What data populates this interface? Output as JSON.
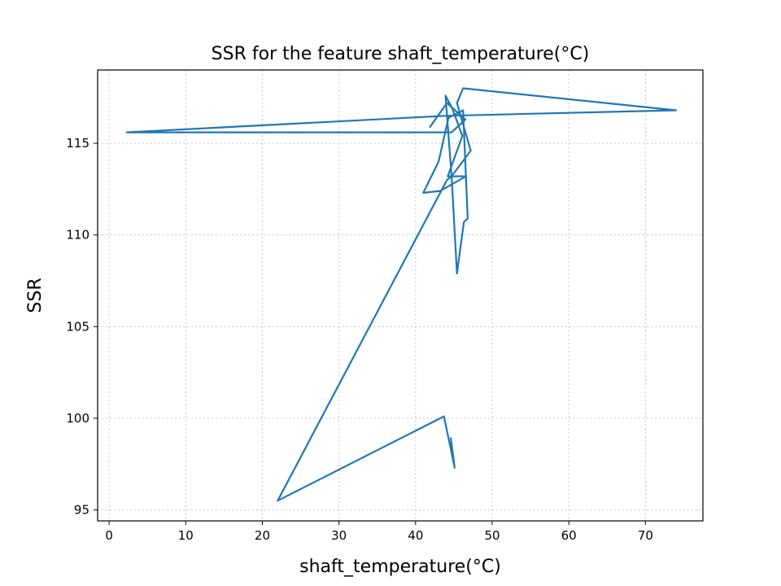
{
  "chart_data": {
    "type": "line",
    "title": "SSR for the feature shaft_temperature(°C)",
    "xlabel": "shaft_temperature(°C)",
    "ylabel": "SSR",
    "xlim": [
      -1.5,
      77.5
    ],
    "ylim": [
      94.4,
      119.0
    ],
    "xticks": [
      0,
      10,
      20,
      30,
      40,
      50,
      60,
      70
    ],
    "yticks": [
      95,
      100,
      105,
      110,
      115
    ],
    "grid": true,
    "grid_style": "dotted",
    "legend": "none",
    "series": [
      {
        "color": "#1f77b4",
        "x": [
          41.9,
          44.1,
          46.5,
          44.7,
          2.3,
          43.9,
          74.0,
          46.2,
          45.4,
          47.2,
          44.7,
          43.9,
          44.8,
          46.1,
          44.2,
          46.6,
          43.2,
          41.0,
          43.0,
          44.3,
          46.2,
          46.8,
          46.3,
          45.4,
          44.7,
          44.1,
          22.0,
          43.7,
          45.1,
          44.6
        ],
        "y": [
          115.9,
          117.2,
          116.3,
          115.6,
          115.6,
          116.5,
          116.8,
          118.0,
          117.2,
          114.6,
          113.2,
          117.6,
          116.9,
          115.4,
          113.2,
          113.2,
          112.4,
          112.3,
          114.0,
          116.4,
          116.8,
          110.9,
          110.7,
          107.9,
          113.2,
          113.0,
          95.5,
          100.1,
          97.3,
          98.9
        ]
      }
    ]
  }
}
